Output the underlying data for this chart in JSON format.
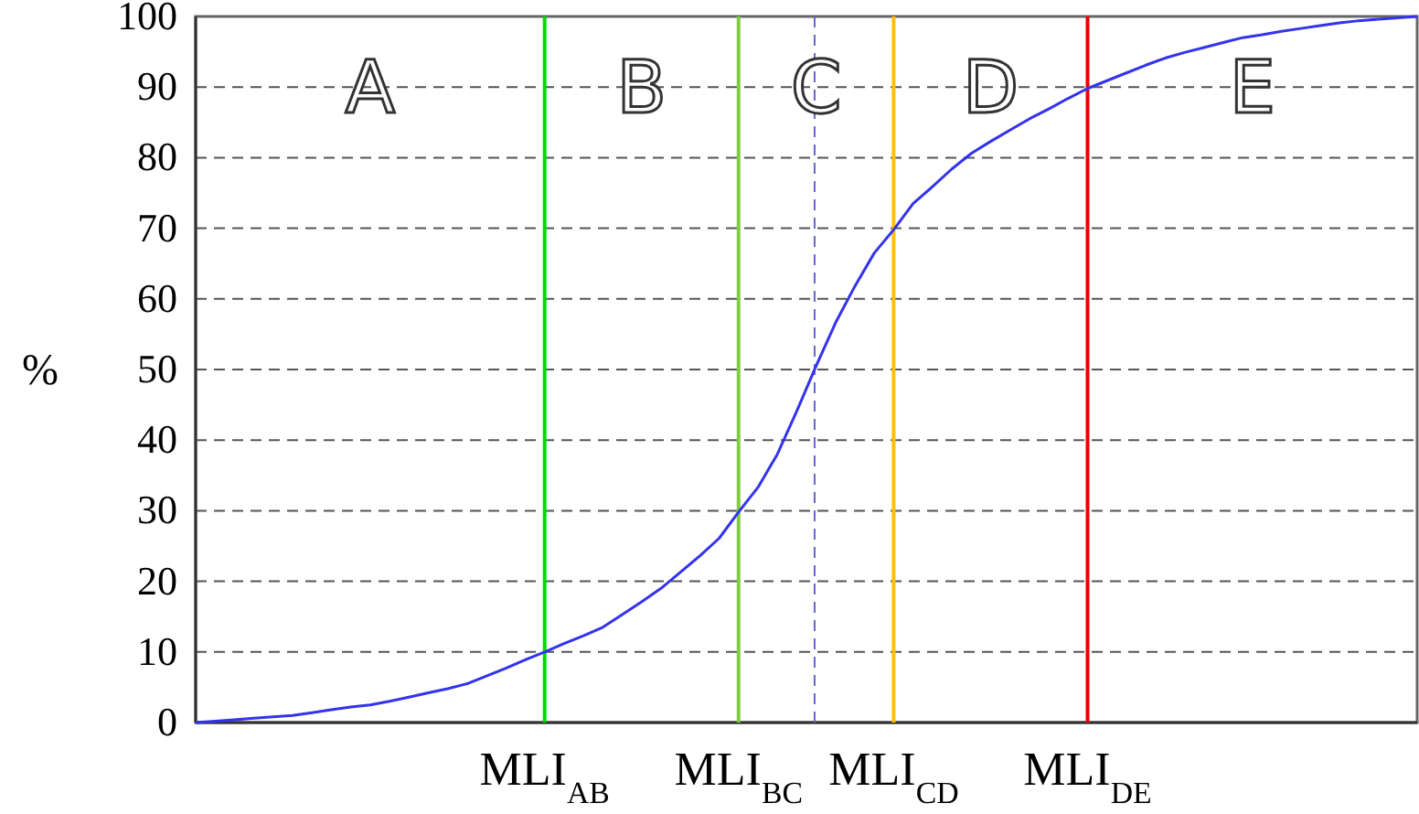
{
  "chart_data": {
    "type": "line",
    "ylabel": "%",
    "ylim": [
      0,
      100
    ],
    "yticks": [
      0,
      10,
      20,
      30,
      40,
      50,
      60,
      70,
      80,
      90,
      100
    ],
    "grid": "y",
    "marker": "none",
    "line_style": "solid",
    "categories": [
      null,
      null,
      null,
      null,
      null,
      null,
      null,
      null,
      null,
      null,
      null,
      null,
      null,
      null,
      null,
      null,
      null,
      null,
      "MLI$_{AB}$",
      null,
      null,
      null,
      null,
      null,
      null,
      null,
      null,
      null,
      "MLI$_{BC}$",
      null,
      null,
      null,
      null,
      null,
      null,
      null,
      "MLI$_{CD}$",
      null,
      null,
      null,
      null,
      null,
      null,
      null,
      null,
      null,
      "MLI$_{DE}$",
      null,
      null,
      null,
      null,
      null,
      null,
      null,
      null,
      null,
      null,
      null,
      null,
      null,
      null,
      null,
      null,
      null
    ],
    "series": [
      {
        "color": "#3333ee",
        "values": [
          0,
          0.2,
          0.4,
          0.6,
          0.8,
          1,
          1.4,
          1.8,
          2.2,
          2.5,
          3,
          3.6,
          4.2,
          4.8,
          5.5,
          6.6,
          7.7,
          8.9,
          10,
          11.2,
          12.3,
          13.5,
          15.3,
          17.1,
          19,
          21.3,
          23.6,
          26.1,
          29.8,
          33.3,
          38,
          44.1,
          50.5,
          56.6,
          61.8,
          66.5,
          69.8,
          73.5,
          75.9,
          78.4,
          80.6,
          82.3,
          83.9,
          85.5,
          86.9,
          88.4,
          89.8,
          90.9,
          92,
          93.1,
          94.1,
          94.9,
          95.6,
          96.3,
          97,
          97.4,
          97.9,
          98.3,
          98.7,
          99.1,
          99.4,
          99.6,
          99.8,
          100
        ]
      }
    ],
    "ref_lines": [
      {
        "axis": "x",
        "value": "MLI$_{AB}$",
        "color": "#00dd00"
      },
      {
        "axis": "x",
        "value": "MLI$_{BC}$",
        "color": "#80cc40"
      },
      {
        "axis": "x",
        "value": "MLI$_{CD}$",
        "color": "#ffc000"
      },
      {
        "axis": "x",
        "value": "MLI$_{DE}$",
        "color": "#ee0000"
      }
    ],
    "annotations": [
      "A",
      "B",
      "C",
      "D",
      "E"
    ]
  }
}
